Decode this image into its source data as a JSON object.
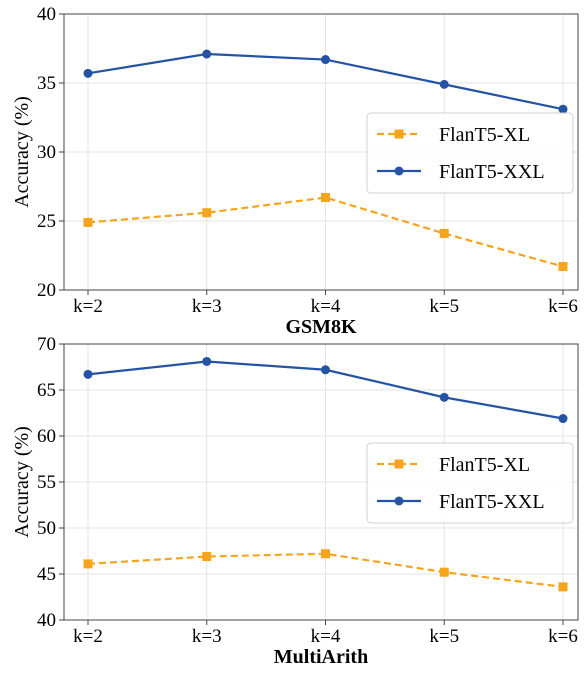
{
  "chart_data": [
    {
      "type": "line",
      "title": "",
      "xlabel": "GSM8K",
      "ylabel": "Accuracy (%)",
      "categories": [
        "k=2",
        "k=3",
        "k=4",
        "k=5",
        "k=6"
      ],
      "ylim": [
        20,
        40
      ],
      "yticks": [
        "20",
        "25",
        "30",
        "35",
        "40"
      ],
      "grid": true,
      "legend_position": "center-right",
      "series": [
        {
          "name": "FlanT5-XL",
          "values": [
            24.9,
            25.6,
            26.7,
            24.1,
            21.7
          ],
          "color": "#f5a41b",
          "marker": "square",
          "line": "dashed"
        },
        {
          "name": "FlanT5-XXL",
          "values": [
            35.7,
            37.1,
            36.7,
            34.9,
            33.1
          ],
          "color": "#2553a4",
          "marker": "circle",
          "line": "solid"
        }
      ]
    },
    {
      "type": "line",
      "title": "",
      "xlabel": "MultiArith",
      "ylabel": "Accuracy (%)",
      "categories": [
        "k=2",
        "k=3",
        "k=4",
        "k=5",
        "k=6"
      ],
      "ylim": [
        40,
        70
      ],
      "yticks": [
        "40",
        "45",
        "50",
        "55",
        "60",
        "65",
        "70"
      ],
      "grid": true,
      "legend_position": "center-right",
      "series": [
        {
          "name": "FlanT5-XL",
          "values": [
            46.1,
            46.9,
            47.2,
            45.2,
            43.6
          ],
          "color": "#f5a41b",
          "marker": "square",
          "line": "dashed"
        },
        {
          "name": "FlanT5-XXL",
          "values": [
            66.7,
            68.1,
            67.2,
            64.2,
            61.9
          ],
          "color": "#2553a4",
          "marker": "circle",
          "line": "solid"
        }
      ]
    }
  ]
}
